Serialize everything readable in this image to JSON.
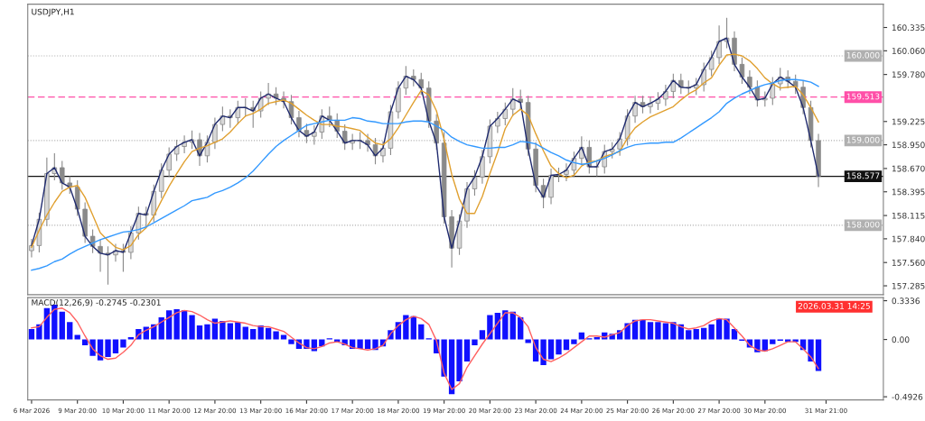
{
  "chart_data": [
    {
      "type": "candlestick",
      "title": "USDJPY,H1",
      "color": "#8a8a8a",
      "categories": [
        null,
        null,
        null,
        null,
        null,
        null,
        null,
        null,
        null,
        null,
        null,
        null,
        null,
        null,
        null,
        null,
        null,
        null,
        null,
        null,
        null,
        null,
        null,
        null,
        null,
        null,
        null,
        null,
        null,
        null,
        null,
        null,
        null,
        null,
        null,
        null,
        null,
        null,
        null,
        null,
        null,
        null,
        null,
        null,
        null,
        null,
        null,
        null,
        null,
        null,
        null,
        null,
        null,
        null,
        null,
        null,
        null,
        null,
        null,
        null,
        null,
        null,
        null,
        null,
        null,
        null,
        null,
        null,
        null,
        null,
        null,
        null,
        null,
        null,
        null,
        null,
        null,
        null,
        null,
        null,
        null,
        null,
        null,
        null,
        null,
        null,
        null,
        null,
        null,
        null,
        null,
        null,
        null,
        null,
        null,
        null,
        null,
        null,
        null,
        null,
        null,
        null,
        null,
        null,
        null,
        null,
        null,
        null,
        null,
        null,
        null,
        null
      ],
      "ohlc": [
        [
          157.7,
          157.84,
          157.62,
          157.76
        ],
        [
          157.76,
          158.15,
          157.68,
          158.07
        ],
        [
          158.07,
          158.8,
          157.99,
          158.61
        ],
        [
          158.61,
          158.85,
          158.53,
          158.68
        ],
        [
          158.68,
          158.76,
          158.42,
          158.5
        ],
        [
          158.5,
          158.58,
          158.37,
          158.45
        ],
        [
          158.45,
          158.53,
          158.11,
          158.19
        ],
        [
          158.19,
          158.27,
          157.79,
          157.87
        ],
        [
          157.87,
          157.95,
          157.67,
          157.75
        ],
        [
          157.75,
          157.83,
          157.45,
          157.67
        ],
        [
          157.67,
          157.75,
          157.3,
          157.65
        ],
        [
          157.65,
          157.78,
          157.57,
          157.7
        ],
        [
          157.7,
          157.78,
          157.45,
          157.68
        ],
        [
          157.68,
          157.99,
          157.6,
          157.91
        ],
        [
          157.91,
          158.22,
          157.83,
          158.14
        ],
        [
          158.14,
          158.22,
          157.98,
          158.12
        ],
        [
          158.12,
          158.48,
          158.04,
          158.4
        ],
        [
          158.4,
          158.73,
          158.32,
          158.65
        ],
        [
          158.65,
          158.92,
          158.57,
          158.84
        ],
        [
          158.84,
          159.01,
          158.76,
          158.93
        ],
        [
          158.93,
          159.06,
          158.85,
          158.98
        ],
        [
          158.98,
          159.12,
          158.9,
          159.01
        ],
        [
          159.01,
          159.09,
          158.7,
          158.82
        ],
        [
          158.82,
          159.06,
          158.74,
          158.98
        ],
        [
          158.98,
          159.27,
          158.9,
          159.19
        ],
        [
          159.19,
          159.4,
          159.11,
          159.29
        ],
        [
          159.29,
          159.37,
          159.15,
          159.27
        ],
        [
          159.27,
          159.47,
          159.19,
          159.39
        ],
        [
          159.39,
          159.5,
          159.28,
          159.39
        ],
        [
          159.39,
          159.47,
          159.15,
          159.35
        ],
        [
          159.35,
          159.58,
          159.27,
          159.5
        ],
        [
          159.5,
          159.68,
          159.42,
          159.55
        ],
        [
          159.55,
          159.63,
          159.42,
          159.5
        ],
        [
          159.5,
          159.58,
          159.38,
          159.46
        ],
        [
          159.46,
          159.54,
          159.19,
          159.27
        ],
        [
          159.27,
          159.35,
          159.04,
          159.12
        ],
        [
          159.12,
          159.2,
          158.97,
          159.05
        ],
        [
          159.05,
          159.18,
          158.95,
          159.1
        ],
        [
          159.1,
          159.37,
          159.02,
          159.29
        ],
        [
          159.29,
          159.4,
          159.16,
          159.24
        ],
        [
          159.24,
          159.32,
          159.03,
          159.11
        ],
        [
          159.11,
          159.19,
          158.89,
          158.97
        ],
        [
          158.97,
          159.08,
          158.89,
          159.0
        ],
        [
          159.0,
          159.1,
          158.9,
          159.0
        ],
        [
          159.0,
          159.08,
          158.87,
          158.95
        ],
        [
          158.95,
          159.03,
          158.72,
          158.82
        ],
        [
          158.82,
          158.99,
          158.74,
          158.91
        ],
        [
          158.91,
          159.42,
          158.83,
          159.34
        ],
        [
          159.34,
          159.7,
          159.26,
          159.62
        ],
        [
          159.62,
          159.88,
          159.54,
          159.76
        ],
        [
          159.76,
          159.84,
          159.64,
          159.72
        ],
        [
          159.72,
          159.8,
          159.54,
          159.62
        ],
        [
          159.62,
          159.7,
          159.15,
          159.23
        ],
        [
          159.23,
          159.31,
          158.89,
          158.97
        ],
        [
          158.97,
          159.1,
          158.02,
          158.1
        ],
        [
          158.1,
          158.18,
          157.5,
          157.73
        ],
        [
          157.73,
          158.13,
          157.65,
          158.05
        ],
        [
          158.05,
          158.51,
          157.97,
          158.43
        ],
        [
          158.43,
          158.65,
          158.35,
          158.57
        ],
        [
          158.57,
          158.89,
          158.49,
          158.81
        ],
        [
          158.81,
          159.25,
          158.73,
          159.17
        ],
        [
          159.17,
          159.34,
          159.09,
          159.26
        ],
        [
          159.26,
          159.45,
          159.18,
          159.37
        ],
        [
          159.37,
          159.62,
          159.29,
          159.49
        ],
        [
          159.49,
          159.6,
          159.37,
          159.45
        ],
        [
          159.45,
          159.53,
          158.82,
          158.9
        ],
        [
          158.9,
          158.98,
          158.39,
          158.47
        ],
        [
          158.47,
          158.55,
          158.2,
          158.33
        ],
        [
          158.33,
          158.67,
          158.25,
          158.59
        ],
        [
          158.59,
          158.68,
          158.51,
          158.6
        ],
        [
          158.6,
          158.73,
          158.52,
          158.65
        ],
        [
          158.65,
          158.87,
          158.57,
          158.79
        ],
        [
          158.79,
          159.05,
          158.71,
          158.92
        ],
        [
          158.92,
          159.0,
          158.61,
          158.69
        ],
        [
          158.69,
          158.77,
          158.58,
          158.69
        ],
        [
          158.69,
          158.95,
          158.61,
          158.87
        ],
        [
          158.87,
          158.98,
          158.79,
          158.9
        ],
        [
          158.9,
          159.1,
          158.82,
          159.02
        ],
        [
          159.02,
          159.37,
          158.94,
          159.29
        ],
        [
          159.29,
          159.53,
          159.21,
          159.45
        ],
        [
          159.45,
          159.53,
          159.32,
          159.4
        ],
        [
          159.4,
          159.52,
          159.32,
          159.44
        ],
        [
          159.44,
          159.57,
          159.36,
          159.49
        ],
        [
          159.49,
          159.66,
          159.41,
          159.58
        ],
        [
          159.58,
          159.79,
          159.5,
          159.71
        ],
        [
          159.71,
          159.79,
          159.55,
          159.63
        ],
        [
          159.63,
          159.71,
          159.54,
          159.62
        ],
        [
          159.62,
          159.74,
          159.54,
          159.66
        ],
        [
          159.66,
          159.92,
          159.58,
          159.84
        ],
        [
          159.84,
          160.06,
          159.76,
          159.98
        ],
        [
          159.98,
          160.36,
          159.9,
          160.17
        ],
        [
          160.17,
          160.45,
          160.09,
          160.21
        ],
        [
          160.21,
          160.29,
          159.82,
          159.9
        ],
        [
          159.9,
          159.98,
          159.67,
          159.75
        ],
        [
          159.75,
          159.83,
          159.55,
          159.63
        ],
        [
          159.63,
          159.71,
          159.4,
          159.48
        ],
        [
          159.48,
          159.58,
          159.4,
          159.5
        ],
        [
          159.5,
          159.75,
          159.42,
          159.67
        ],
        [
          159.67,
          159.86,
          159.59,
          159.75
        ],
        [
          159.75,
          159.83,
          159.62,
          159.7
        ],
        [
          159.7,
          159.78,
          159.55,
          159.63
        ],
        [
          159.63,
          159.71,
          159.31,
          159.39
        ],
        [
          159.39,
          159.47,
          158.92,
          159.0
        ],
        [
          159.0,
          159.08,
          158.45,
          158.58
        ],
        null,
        null,
        null,
        null,
        null,
        null,
        null,
        null
      ],
      "series": [
        {
          "type": "line",
          "color": "#1f2a6e",
          "values": [
            157.76,
            158.07,
            158.61,
            158.68,
            158.5,
            158.45,
            158.19,
            157.87,
            157.75,
            157.67,
            157.65,
            157.7,
            157.68,
            157.91,
            158.14,
            158.12,
            158.4,
            158.65,
            158.84,
            158.93,
            158.98,
            159.01,
            158.82,
            158.98,
            159.19,
            159.29,
            159.27,
            159.39,
            159.39,
            159.35,
            159.5,
            159.55,
            159.5,
            159.46,
            159.27,
            159.12,
            159.05,
            159.1,
            159.29,
            159.24,
            159.11,
            158.97,
            159.0,
            159.0,
            158.95,
            158.82,
            158.91,
            159.34,
            159.62,
            159.76,
            159.72,
            159.62,
            159.23,
            158.97,
            158.1,
            157.73,
            158.05,
            158.43,
            158.57,
            158.81,
            159.17,
            159.26,
            159.37,
            159.49,
            159.45,
            158.9,
            158.47,
            158.33,
            158.59,
            158.6,
            158.65,
            158.79,
            158.92,
            158.69,
            158.69,
            158.87,
            158.9,
            159.02,
            159.29,
            159.45,
            159.4,
            159.44,
            159.49,
            159.58,
            159.71,
            159.63,
            159.62,
            159.66,
            159.84,
            159.98,
            160.17,
            160.21,
            159.9,
            159.75,
            159.63,
            159.48,
            159.5,
            159.67,
            159.75,
            159.7,
            159.63,
            159.39,
            159.0,
            158.58,
            null,
            null,
            null,
            null,
            null,
            null,
            null,
            null
          ]
        },
        {
          "type": "line",
          "color": "#e0a030",
          "values": [
            157.74,
            157.94,
            158.12,
            158.27,
            158.4,
            158.45,
            158.47,
            158.33,
            158.12,
            157.91,
            157.82,
            157.74,
            157.71,
            157.76,
            157.89,
            157.97,
            158.11,
            158.29,
            158.46,
            158.61,
            158.75,
            158.87,
            158.91,
            158.94,
            158.98,
            159.02,
            159.1,
            159.2,
            159.29,
            159.32,
            159.37,
            159.44,
            159.46,
            159.48,
            159.44,
            159.37,
            159.3,
            159.24,
            159.19,
            159.19,
            159.17,
            159.16,
            159.14,
            159.12,
            159.04,
            158.97,
            158.95,
            159.02,
            159.15,
            159.3,
            159.45,
            159.59,
            159.54,
            159.35,
            159.01,
            158.6,
            158.31,
            158.14,
            158.14,
            158.34,
            158.61,
            158.86,
            159.14,
            159.3,
            159.37,
            159.3,
            159.08,
            158.88,
            158.7,
            158.61,
            158.56,
            158.59,
            158.7,
            158.75,
            158.76,
            158.81,
            158.84,
            158.87,
            159.03,
            159.15,
            159.22,
            159.28,
            159.32,
            159.36,
            159.4,
            159.48,
            159.55,
            159.6,
            159.68,
            159.74,
            159.89,
            160.01,
            160.02,
            160.0,
            159.94,
            159.85,
            159.74,
            159.67,
            159.62,
            159.63,
            159.64,
            159.54,
            159.39,
            159.22,
            null,
            null,
            null,
            null,
            null,
            null,
            null,
            null
          ]
        },
        {
          "type": "line",
          "color": "#3399ff",
          "values": [
            157.47,
            157.49,
            157.52,
            157.57,
            157.6,
            157.66,
            157.71,
            157.75,
            157.79,
            157.83,
            157.86,
            157.89,
            157.92,
            157.93,
            157.95,
            157.98,
            158.03,
            158.08,
            158.13,
            158.18,
            158.23,
            158.29,
            158.31,
            158.33,
            158.38,
            158.41,
            158.45,
            158.5,
            158.56,
            158.64,
            158.74,
            158.84,
            158.93,
            159.0,
            159.06,
            159.12,
            159.18,
            159.2,
            159.22,
            159.24,
            159.24,
            159.24,
            159.27,
            159.26,
            159.23,
            159.22,
            159.2,
            159.2,
            159.2,
            159.22,
            159.23,
            159.23,
            159.22,
            159.17,
            159.12,
            159.04,
            158.99,
            158.95,
            158.93,
            158.91,
            158.91,
            158.92,
            158.92,
            158.95,
            158.99,
            158.98,
            158.96,
            158.91,
            158.86,
            158.82,
            158.77,
            158.74,
            158.72,
            158.73,
            158.76,
            158.79,
            158.83,
            158.88,
            158.92,
            158.95,
            158.96,
            158.97,
            158.97,
            158.98,
            158.98,
            159.03,
            159.09,
            159.15,
            159.21,
            159.27,
            159.34,
            159.44,
            159.5,
            159.55,
            159.59,
            159.63,
            159.66,
            159.68,
            159.71,
            159.72,
            159.72,
            159.71,
            159.69,
            159.64,
            null,
            null,
            null,
            null,
            null,
            null,
            null,
            null
          ]
        }
      ],
      "ylim": [
        157.18,
        160.61
      ],
      "yticks": [
        {
          "value": 160.335,
          "label": "160.335"
        },
        {
          "value": 160.06,
          "label": "160.060"
        },
        {
          "value": 159.78,
          "label": "159.780"
        },
        {
          "value": 159.225,
          "label": "159.225"
        },
        {
          "value": 158.95,
          "label": "158.950"
        },
        {
          "value": 158.67,
          "label": "158.670"
        },
        {
          "value": 158.395,
          "label": "158.395"
        },
        {
          "value": 158.115,
          "label": "158.115"
        },
        {
          "value": 157.84,
          "label": "157.840"
        },
        {
          "value": 157.56,
          "label": "157.560"
        },
        {
          "value": 157.285,
          "label": "157.285"
        }
      ],
      "ref_lines": [
        {
          "axis": "y",
          "value": 160.0,
          "label": "160.000",
          "color": "#b0b0b0",
          "line_style": "dotted"
        },
        {
          "axis": "y",
          "value": 159.0,
          "label": "159.000",
          "color": "#b0b0b0",
          "line_style": "dotted"
        },
        {
          "axis": "y",
          "value": 158.0,
          "label": "158.000",
          "color": "#b0b0b0",
          "line_style": "dotted"
        },
        {
          "axis": "y",
          "value": 159.513,
          "label": "159.513",
          "color": "#ff4fa8",
          "line_style": "dashed"
        },
        {
          "axis": "y",
          "value": 158.577,
          "label": "158.577",
          "color": "#111111",
          "line_style": "solid"
        }
      ]
    },
    {
      "type": "bar",
      "title": "MACD(12,26,9) -0.2745 -0.2301",
      "categories": [
        "6 Mar 2026",
        null,
        null,
        null,
        null,
        null,
        "9 Mar 20:00",
        null,
        null,
        null,
        null,
        null,
        "10 Mar 20:00",
        null,
        null,
        null,
        null,
        null,
        "11 Mar 20:00",
        null,
        null,
        null,
        null,
        null,
        "12 Mar 20:00",
        null,
        null,
        null,
        null,
        null,
        "13 Mar 20:00",
        null,
        null,
        null,
        null,
        null,
        "16 Mar 20:00",
        null,
        null,
        null,
        null,
        null,
        "17 Mar 20:00",
        null,
        null,
        null,
        null,
        null,
        "18 Mar 20:00",
        null,
        null,
        null,
        null,
        null,
        "19 Mar 20:00",
        null,
        null,
        null,
        null,
        null,
        "20 Mar 20:00",
        null,
        null,
        null,
        null,
        null,
        "23 Mar 20:00",
        null,
        null,
        null,
        null,
        null,
        "24 Mar 20:00",
        null,
        null,
        null,
        null,
        null,
        "25 Mar 20:00",
        null,
        null,
        null,
        null,
        null,
        "26 Mar 20:00",
        null,
        null,
        null,
        null,
        null,
        "27 Mar 20:00",
        null,
        null,
        null,
        null,
        null,
        "30 Mar 20:00",
        null,
        null,
        null,
        null,
        null,
        null,
        null,
        "31 Mar 21:00",
        null,
        null,
        null,
        null,
        null,
        null,
        null
      ],
      "series": [
        {
          "type": "bar",
          "color": "#1010ff",
          "values": [
            0.09,
            0.13,
            0.27,
            0.3,
            0.24,
            0.15,
            0.04,
            -0.05,
            -0.14,
            -0.18,
            -0.15,
            -0.12,
            -0.07,
            0.02,
            0.09,
            0.11,
            0.13,
            0.19,
            0.25,
            0.26,
            0.25,
            0.21,
            0.12,
            0.13,
            0.18,
            0.16,
            0.14,
            0.15,
            0.11,
            0.09,
            0.12,
            0.1,
            0.07,
            0.04,
            -0.04,
            -0.08,
            -0.08,
            -0.1,
            -0.06,
            0.01,
            -0.02,
            -0.05,
            -0.08,
            -0.08,
            -0.08,
            -0.09,
            -0.06,
            0.08,
            0.15,
            0.21,
            0.2,
            0.13,
            0.01,
            -0.12,
            -0.32,
            -0.47,
            -0.36,
            -0.19,
            -0.05,
            0.08,
            0.21,
            0.23,
            0.25,
            0.24,
            0.19,
            -0.03,
            -0.19,
            -0.22,
            -0.17,
            -0.13,
            -0.09,
            -0.04,
            0.06,
            0.01,
            0.02,
            0.06,
            0.05,
            0.08,
            0.14,
            0.17,
            0.17,
            0.15,
            0.15,
            0.14,
            0.15,
            0.13,
            0.08,
            0.09,
            0.1,
            0.13,
            0.18,
            0.18,
            0.09,
            -0.01,
            -0.07,
            -0.11,
            -0.1,
            -0.04,
            -0.01,
            -0.02,
            -0.02,
            -0.09,
            -0.19,
            -0.27,
            null,
            null,
            null,
            null,
            null,
            null,
            null,
            null
          ]
        },
        {
          "type": "line",
          "color": "#ff6060",
          "values": [
            0.1,
            0.11,
            0.19,
            0.26,
            0.27,
            0.23,
            0.15,
            0.03,
            -0.08,
            -0.14,
            -0.17,
            -0.16,
            -0.11,
            -0.05,
            0.04,
            0.08,
            0.11,
            0.15,
            0.19,
            0.23,
            0.25,
            0.24,
            0.21,
            0.17,
            0.14,
            0.15,
            0.16,
            0.15,
            0.14,
            0.12,
            0.11,
            0.11,
            0.09,
            0.07,
            0.02,
            -0.03,
            -0.07,
            -0.08,
            -0.06,
            -0.03,
            -0.02,
            -0.04,
            -0.07,
            -0.08,
            -0.09,
            -0.08,
            -0.05,
            0.05,
            0.12,
            0.17,
            0.2,
            0.18,
            0.13,
            -0.01,
            -0.29,
            -0.43,
            -0.38,
            -0.24,
            -0.14,
            -0.04,
            0.05,
            0.14,
            0.23,
            0.23,
            0.19,
            0.11,
            -0.07,
            -0.17,
            -0.19,
            -0.16,
            -0.12,
            -0.07,
            -0.02,
            0.03,
            0.03,
            0.02,
            0.04,
            0.06,
            0.12,
            0.16,
            0.17,
            0.17,
            0.16,
            0.15,
            0.14,
            0.11,
            0.09,
            0.1,
            0.12,
            0.16,
            0.18,
            0.17,
            0.1,
            0.03,
            -0.05,
            -0.09,
            -0.1,
            -0.08,
            -0.05,
            -0.02,
            -0.02,
            -0.08,
            -0.15,
            -0.25,
            null,
            null,
            null,
            null,
            null,
            null,
            null,
            null
          ]
        }
      ],
      "ylim": [
        -0.52,
        0.36
      ],
      "yticks": [
        {
          "value": 0.3336,
          "label": "0.3336"
        },
        {
          "value": 0,
          "label": "0.00"
        },
        {
          "value": -0.4926,
          "label": "-0.4926"
        }
      ],
      "annotations": [
        "2026.03.31 14:25"
      ]
    }
  ]
}
